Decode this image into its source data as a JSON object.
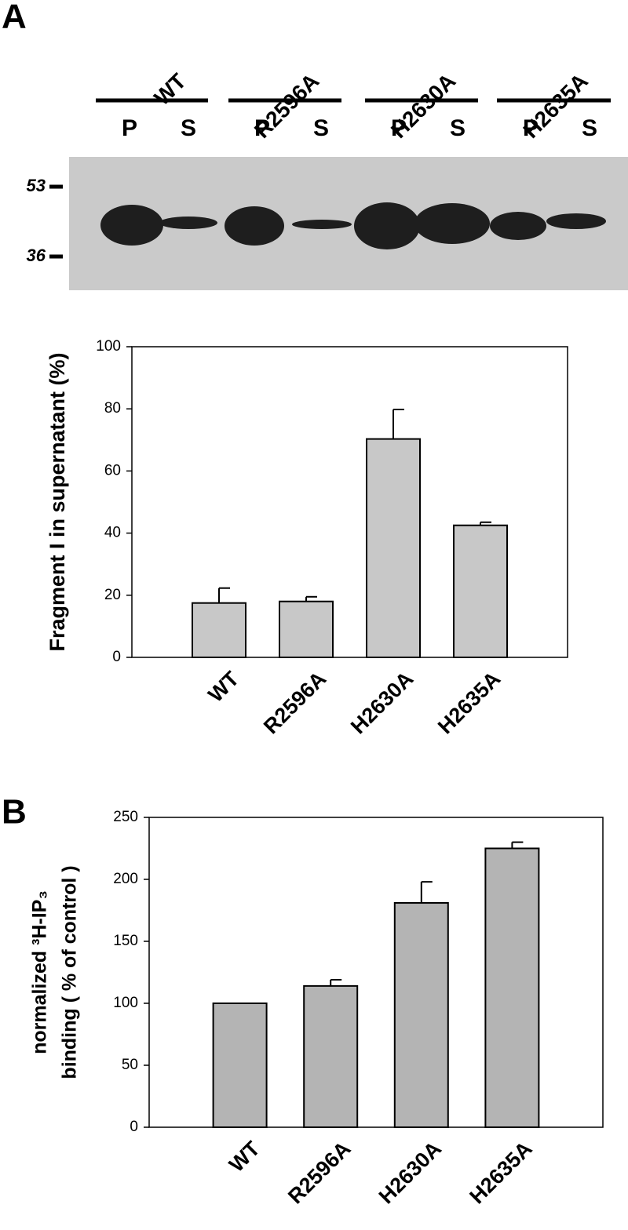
{
  "panel_labels": [
    "A",
    "B"
  ],
  "blot": {
    "lanes": [
      "WT",
      "R2596A",
      "H2630A",
      "H2635A"
    ],
    "fractions": [
      "P",
      "S"
    ],
    "markers": [
      53,
      36
    ]
  },
  "chart_data": [
    {
      "type": "bar",
      "ylabel": "Fragment I in supernatant (%)",
      "categories": [
        "WT",
        "R2596A",
        "H2630A",
        "H2635A"
      ],
      "values": [
        17.5,
        18,
        70.3,
        42.5
      ],
      "errors": [
        4.8,
        1.5,
        9.5,
        1.0
      ],
      "color": "#c8c8c8",
      "ylim": [
        0,
        100
      ],
      "yticks": [
        0,
        20,
        40,
        60,
        80,
        100
      ]
    },
    {
      "type": "bar",
      "ylabel": [
        "normalized ³H-IP₃",
        "binding ( % of control )"
      ],
      "categories": [
        "WT",
        "R2596A",
        "H2630A",
        "H2635A"
      ],
      "values": [
        100,
        114,
        181,
        225
      ],
      "errors": [
        0,
        5,
        17,
        5
      ],
      "color": "#b4b4b4",
      "ylim": [
        0,
        250
      ],
      "yticks": [
        0,
        50,
        100,
        150,
        200,
        250
      ]
    }
  ]
}
